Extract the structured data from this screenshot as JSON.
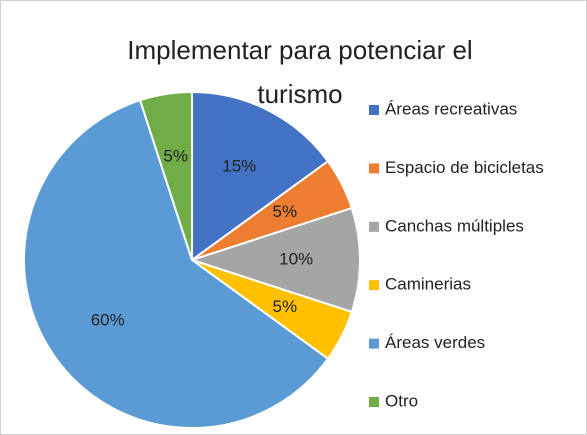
{
  "chart_data": {
    "type": "pie",
    "title": "Implementar para potenciar el turismo",
    "categories": [
      "Áreas recreativas",
      "Espacio de bicicletas",
      "Canchas múltiples",
      "Caminerias",
      "Áreas verdes",
      "Otro"
    ],
    "values": [
      15,
      5,
      10,
      5,
      60,
      5
    ],
    "value_labels": [
      "15%",
      "5%",
      "10%",
      "5%",
      "60%",
      "5%"
    ],
    "colors": [
      "#4472c4",
      "#ed7d31",
      "#a5a5a5",
      "#ffc000",
      "#5b9bd5",
      "#70ad47"
    ],
    "legend": "right"
  }
}
